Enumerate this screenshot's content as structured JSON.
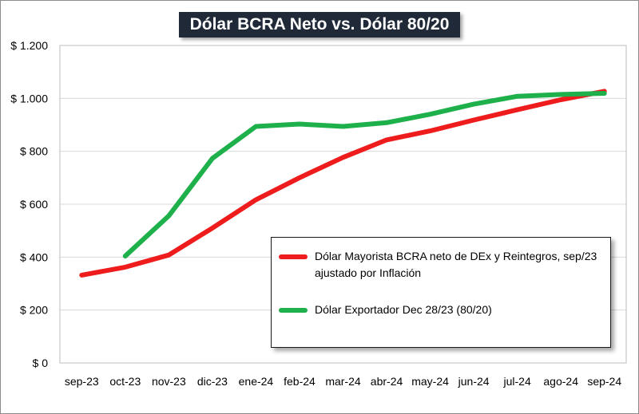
{
  "chart_data": {
    "type": "line",
    "title": "Dólar BCRA Neto vs. Dólar 80/20",
    "categories": [
      "sep-23",
      "oct-23",
      "nov-23",
      "dic-23",
      "ene-24",
      "feb-24",
      "mar-24",
      "abr-24",
      "may-24",
      "jun-24",
      "jul-24",
      "ago-24",
      "sep-24"
    ],
    "y_tick_labels": [
      "$ 0",
      "$ 200",
      "$ 400",
      "$ 600",
      "$ 800",
      "$ 1.000",
      "$ 1.200"
    ],
    "y_ticks": [
      0,
      200,
      400,
      600,
      800,
      1000,
      1200
    ],
    "ylim": [
      0,
      1200
    ],
    "xlabel": "",
    "ylabel": "",
    "grid": true,
    "legend_placement": "bottom-right",
    "series": [
      {
        "name": "Dólar Mayorista BCRA neto de DEx y Reintegros, sep/23 ajustado por Inflación",
        "color": "#ee1c1c",
        "values": [
          332,
          362,
          408,
          510,
          617,
          700,
          777,
          843,
          877,
          918,
          957,
          995,
          1027
        ]
      },
      {
        "name": "Dólar Exportador Dec 28/23 (80/20)",
        "color": "#1eb04b",
        "values": [
          null,
          404,
          556,
          773,
          894,
          903,
          894,
          908,
          940,
          978,
          1008,
          1015,
          1019
        ]
      }
    ]
  }
}
